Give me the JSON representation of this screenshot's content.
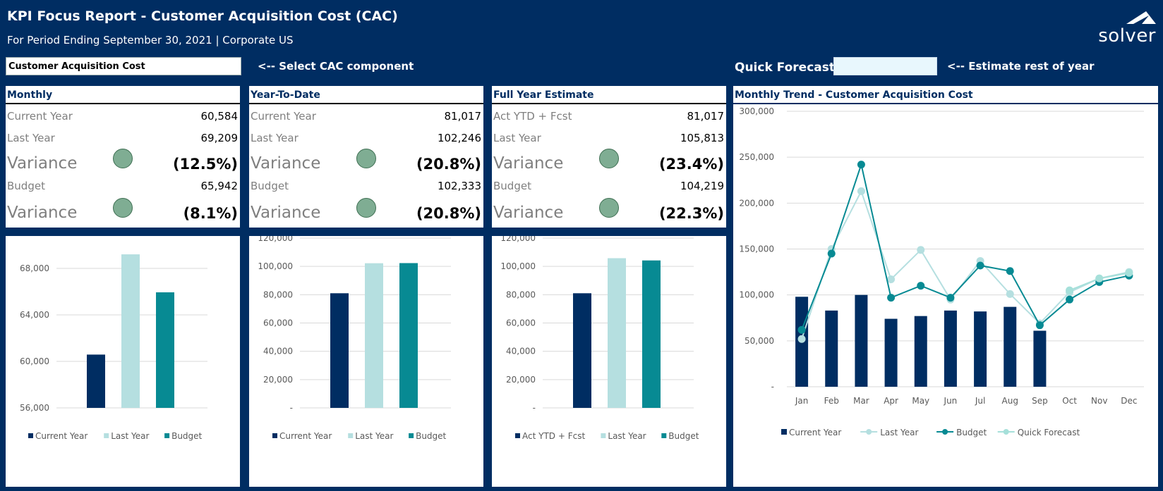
{
  "header": {
    "title": "KPI Focus Report - Customer Acquisition Cost (CAC)",
    "subtitle": "For Period Ending September 30, 2021 | Corporate US",
    "logo_text": "solver"
  },
  "controls": {
    "component_value": "Customer Acquisition Cost",
    "component_hint": "<-- Select CAC component",
    "quick_forecast_label": "Quick Forecast:",
    "quick_forecast_value": "",
    "quick_forecast_hint": "<-- Estimate rest of year"
  },
  "kpis": {
    "monthly": {
      "title": "Monthly",
      "row1_label": "Current Year",
      "row1_value": "60,584",
      "row2_label": "Last Year",
      "row2_value": "69,209",
      "var1_label": "Variance",
      "var1_value": "(12.5%)",
      "row3_label": "Budget",
      "row3_value": "65,942",
      "var2_label": "Variance",
      "var2_value": "(8.1%)"
    },
    "ytd": {
      "title": "Year-To-Date",
      "row1_label": "Current Year",
      "row1_value": "81,017",
      "row2_label": "Last Year",
      "row2_value": "102,246",
      "var1_label": "Variance",
      "var1_value": "(20.8%)",
      "row3_label": "Budget",
      "row3_value": "102,333",
      "var2_label": "Variance",
      "var2_value": "(20.8%)"
    },
    "fy": {
      "title": "Full Year Estimate",
      "row1_label": "Act YTD + Fcst",
      "row1_value": "81,017",
      "row2_label": "Last Year",
      "row2_value": "105,813",
      "var1_label": "Variance",
      "var1_value": "(23.4%)",
      "row3_label": "Budget",
      "row3_value": "104,219",
      "var2_label": "Variance",
      "var2_value": "(22.3%)"
    }
  },
  "trend_title": "Monthly Trend - Customer Acquisition Cost",
  "colors": {
    "navy": "#002d62",
    "light_teal": "#b5dfe0",
    "teal": "#078a93",
    "quick_forecast": "#a6e0da",
    "status_green": "#7fad93"
  },
  "chart_data": [
    {
      "type": "bar",
      "categories": [
        "Current Year",
        "Last Year",
        "Budget"
      ],
      "values": [
        60584,
        69209,
        65942
      ],
      "ylim": [
        56000,
        70000
      ],
      "ticks": [
        "56,000",
        "60,000",
        "64,000",
        "68,000"
      ],
      "legend": [
        "Current Year",
        "Last Year",
        "Budget"
      ],
      "legend_position": "bottom"
    },
    {
      "type": "bar",
      "categories": [
        "Current Year",
        "Last Year",
        "Budget"
      ],
      "values": [
        81017,
        102246,
        102333
      ],
      "ylim": [
        0,
        120000
      ],
      "ticks": [
        "-",
        "20,000",
        "40,000",
        "60,000",
        "80,000",
        "100,000",
        "120,000"
      ],
      "legend": [
        "Current Year",
        "Last Year",
        "Budget"
      ],
      "legend_position": "bottom"
    },
    {
      "type": "bar",
      "categories": [
        "Act YTD + Fcst",
        "Last Year",
        "Budget"
      ],
      "values": [
        81017,
        105813,
        104219
      ],
      "ylim": [
        0,
        120000
      ],
      "ticks": [
        "-",
        "20,000",
        "40,000",
        "60,000",
        "80,000",
        "100,000",
        "120,000"
      ],
      "legend": [
        "Act YTD + Fcst",
        "Last Year",
        "Budget"
      ],
      "legend_position": "bottom"
    },
    {
      "type": "bar+line",
      "title": "Monthly Trend - Customer Acquisition Cost",
      "categories": [
        "Jan",
        "Feb",
        "Mar",
        "Apr",
        "May",
        "Jun",
        "Jul",
        "Aug",
        "Sep",
        "Oct",
        "Nov",
        "Dec"
      ],
      "ylim": [
        0,
        300000
      ],
      "ticks": [
        "-",
        "50,000",
        "100,000",
        "150,000",
        "200,000",
        "250,000",
        "300,000"
      ],
      "series": [
        {
          "name": "Current Year",
          "kind": "bar",
          "values": [
            98000,
            83000,
            100000,
            74000,
            77000,
            83000,
            82000,
            87000,
            61000,
            null,
            null,
            null
          ]
        },
        {
          "name": "Last Year",
          "kind": "line",
          "values": [
            52000,
            150000,
            213000,
            117000,
            149000,
            95000,
            137000,
            101000,
            69000,
            103000,
            118000,
            125000
          ]
        },
        {
          "name": "Budget",
          "kind": "line",
          "values": [
            62000,
            145000,
            242000,
            97000,
            110000,
            97000,
            132000,
            126000,
            67000,
            95000,
            114000,
            121000
          ]
        },
        {
          "name": "Quick Forecast",
          "kind": "line",
          "values": [
            null,
            null,
            null,
            null,
            null,
            null,
            null,
            null,
            null,
            105000,
            118000,
            124000
          ]
        }
      ],
      "legend_position": "bottom"
    }
  ]
}
